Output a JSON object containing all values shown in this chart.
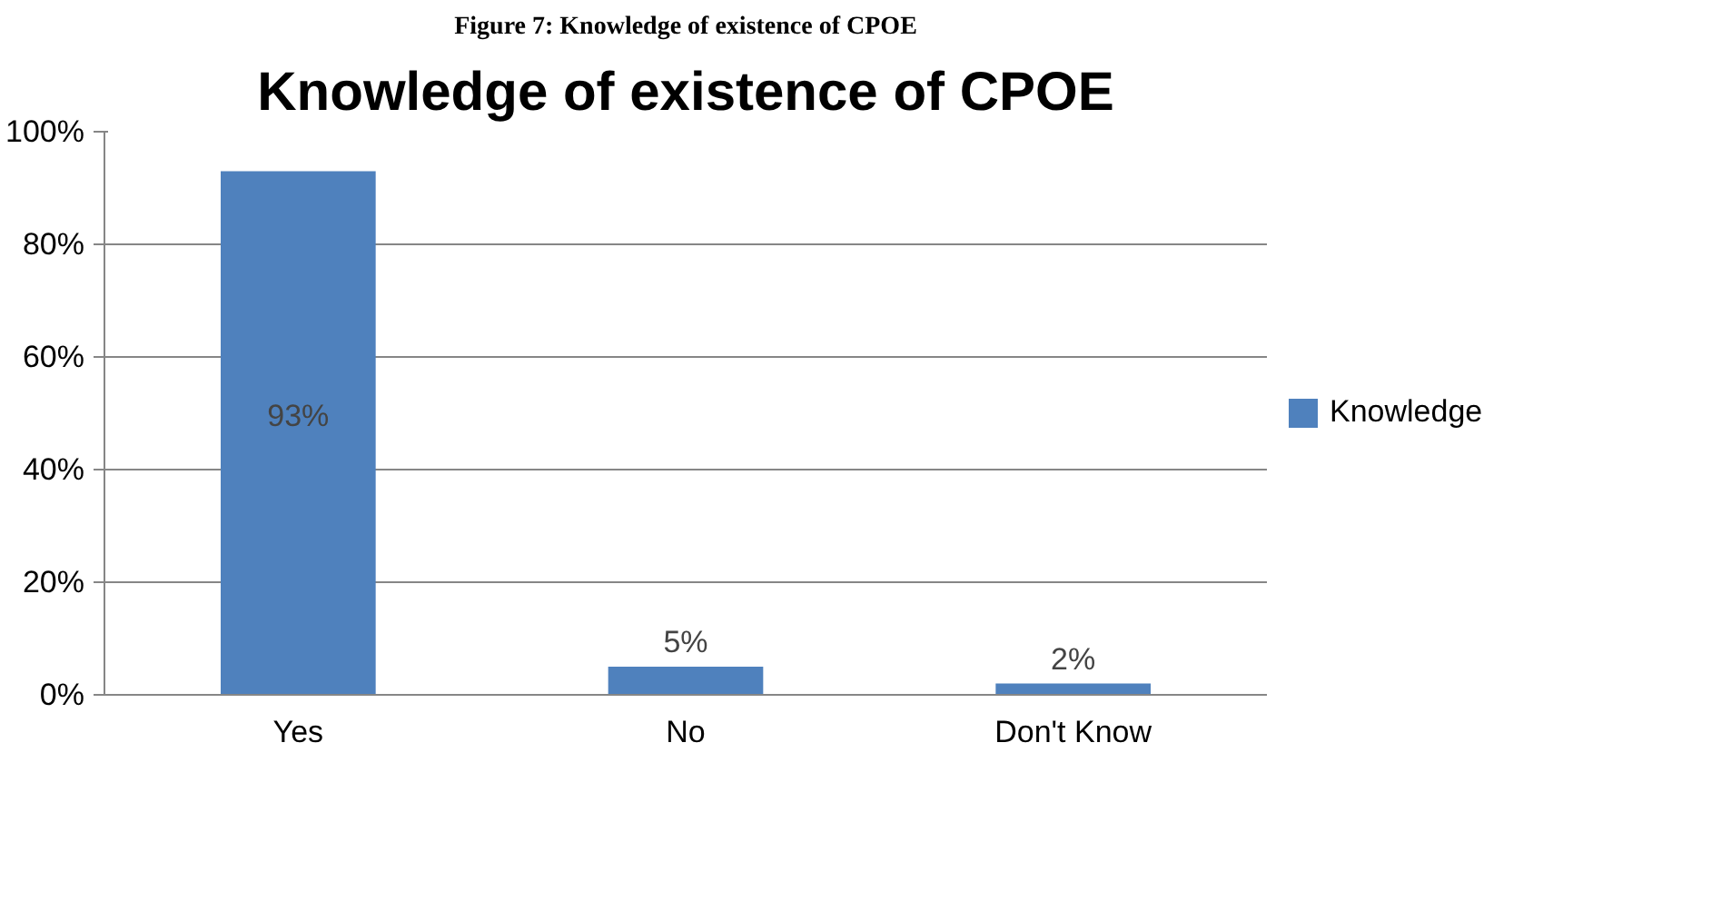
{
  "chart_data": {
    "type": "bar",
    "title": "Knowledge of existence of CPOE",
    "annotations": [
      "Figure 7: Knowledge of existence of CPOE"
    ],
    "categories": [
      "Yes",
      "No",
      "Don't Know"
    ],
    "series": [
      {
        "name": "Knowledge",
        "color": "#4f81bd",
        "values": [
          93,
          5,
          2
        ]
      }
    ],
    "value_labels": [
      "93%",
      "5%",
      "2%"
    ],
    "ylim": [
      0,
      100
    ],
    "yticks": [
      {
        "value": 0,
        "label": "0%"
      },
      {
        "value": 20,
        "label": "20%"
      },
      {
        "value": 40,
        "label": "40%"
      },
      {
        "value": 60,
        "label": "60%"
      },
      {
        "value": 80,
        "label": "80%"
      },
      {
        "value": 100,
        "label": "100%"
      }
    ],
    "grid": "y",
    "legend": "right"
  }
}
